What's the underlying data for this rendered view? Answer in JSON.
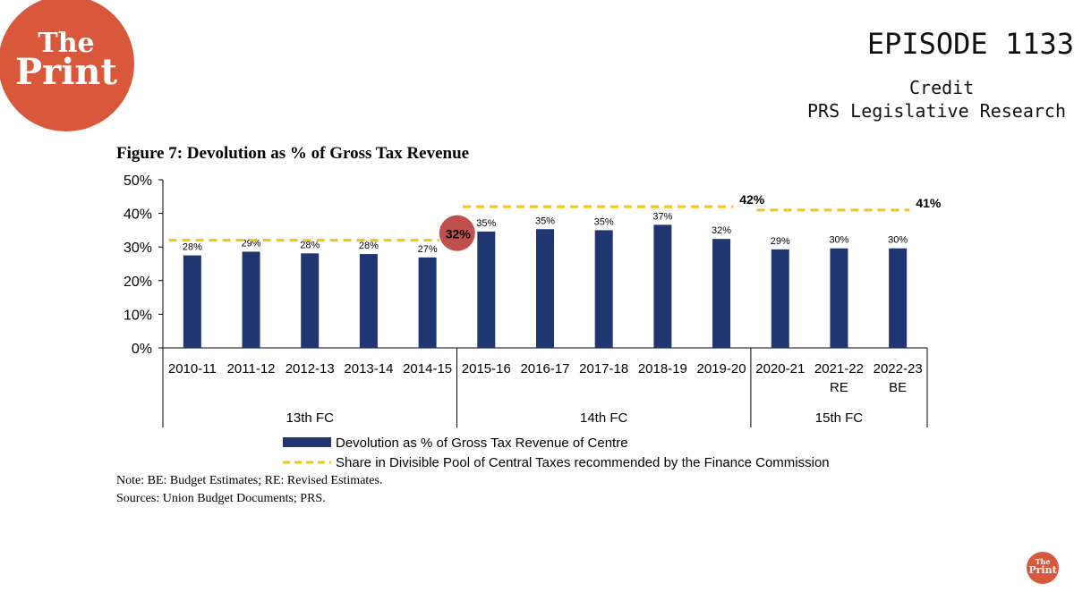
{
  "branding": {
    "logo_line1": "The",
    "logo_line2": "Print",
    "episode": "EPISODE 1133",
    "credit_label": "Credit",
    "credit_source": "PRS Legislative Research"
  },
  "colors": {
    "bar": "#1f3670",
    "dash": "#f2c419",
    "highlight": "#c0504d",
    "brand": "#d9573a"
  },
  "chart_data": {
    "type": "bar",
    "title": "Figure 7: Devolution as % of Gross Tax Revenue",
    "categories": [
      [
        "2010-11"
      ],
      [
        "2011-12"
      ],
      [
        "2012-13"
      ],
      [
        "2013-14"
      ],
      [
        "2014-15"
      ],
      [
        "2015-16"
      ],
      [
        "2016-17"
      ],
      [
        "2017-18"
      ],
      [
        "2018-19"
      ],
      [
        "2019-20"
      ],
      [
        "2020-21"
      ],
      [
        "2021-22",
        "RE"
      ],
      [
        "2022-23",
        "BE"
      ]
    ],
    "values": [
      27.5,
      28.6,
      28.1,
      27.9,
      26.9,
      34.6,
      35.3,
      35.0,
      36.6,
      32.4,
      29.3,
      29.6,
      29.6
    ],
    "data_labels": [
      "28%",
      "29%",
      "28%",
      "28%",
      "27%",
      "35%",
      "35%",
      "35%",
      "37%",
      "32%",
      "29%",
      "30%",
      "30%"
    ],
    "y_ticks": [
      0,
      10,
      20,
      30,
      40,
      50
    ],
    "y_tick_labels": [
      "0%",
      "10%",
      "20%",
      "30%",
      "40%",
      "50%"
    ],
    "ylim": [
      0,
      50
    ],
    "groups": [
      {
        "label": "13th FC",
        "start": 0,
        "end": 4,
        "share": 32,
        "share_label": "32%",
        "highlighted": true
      },
      {
        "label": "14th FC",
        "start": 5,
        "end": 9,
        "share": 42,
        "share_label": "42%",
        "highlighted": false
      },
      {
        "label": "15th FC",
        "start": 10,
        "end": 12,
        "share": 41,
        "share_label": "41%",
        "highlighted": false
      }
    ],
    "series": [
      {
        "name": "Devolution as % of Gross Tax Revenue of Centre"
      },
      {
        "name": "Share in Divisible Pool of Central Taxes recommended by the Finance Commission"
      }
    ],
    "grid": false,
    "legend_position": "bottom"
  },
  "notes": {
    "note": "Note: BE: Budget Estimates; RE: Revised Estimates.",
    "sources": "Sources: Union Budget Documents; PRS."
  }
}
